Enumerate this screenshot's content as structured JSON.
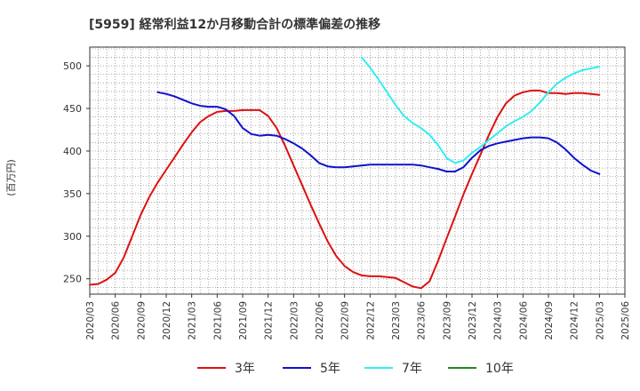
{
  "chart_data": {
    "type": "line",
    "title": "[5959]  経常利益12か月移動合計の標準偏差の推移",
    "ylabel": "(百万円)",
    "xlabel": "",
    "ylim": [
      232,
      522
    ],
    "yticks": [
      250,
      300,
      350,
      400,
      450,
      500
    ],
    "xlim": [
      "2020-03",
      "2025-06"
    ],
    "xticks": [
      "2020/03",
      "2020/06",
      "2020/09",
      "2020/12",
      "2021/03",
      "2021/06",
      "2021/09",
      "2021/12",
      "2022/03",
      "2022/06",
      "2022/09",
      "2022/12",
      "2023/03",
      "2023/06",
      "2023/09",
      "2023/12",
      "2024/03",
      "2024/06",
      "2024/09",
      "2024/12",
      "2025/03",
      "2025/06"
    ],
    "grid": true,
    "legend_position": "bottom",
    "series": [
      {
        "name": "3年",
        "color": "#dd1111",
        "x": [
          "2020-03",
          "2020-04",
          "2020-05",
          "2020-06",
          "2020-07",
          "2020-08",
          "2020-09",
          "2020-10",
          "2020-11",
          "2020-12",
          "2021-01",
          "2021-02",
          "2021-03",
          "2021-04",
          "2021-05",
          "2021-06",
          "2021-07",
          "2021-08",
          "2021-09",
          "2021-10",
          "2021-11",
          "2021-12",
          "2022-01",
          "2022-02",
          "2022-03",
          "2022-04",
          "2022-05",
          "2022-06",
          "2022-07",
          "2022-08",
          "2022-09",
          "2022-10",
          "2022-11",
          "2022-12",
          "2023-01",
          "2023-02",
          "2023-03",
          "2023-04",
          "2023-05",
          "2023-06",
          "2023-07",
          "2023-08",
          "2023-09",
          "2023-10",
          "2023-11",
          "2023-12",
          "2024-01",
          "2024-02",
          "2024-03",
          "2024-04",
          "2024-05",
          "2024-06",
          "2024-07",
          "2024-08",
          "2024-09",
          "2024-10",
          "2024-11",
          "2024-12",
          "2025-01",
          "2025-02",
          "2025-03"
        ],
        "values": [
          243,
          244,
          249,
          257,
          275,
          300,
          325,
          346,
          363,
          378,
          393,
          408,
          422,
          434,
          441,
          446,
          447,
          447,
          448,
          448,
          448,
          441,
          427,
          406,
          383,
          360,
          337,
          315,
          294,
          277,
          265,
          258,
          254,
          253,
          253,
          252,
          251,
          246,
          241,
          239,
          247,
          271,
          297,
          323,
          349,
          373,
          396,
          419,
          440,
          456,
          465,
          469,
          471,
          471,
          468,
          468,
          467,
          468,
          468,
          467,
          466
        ]
      },
      {
        "name": "5年",
        "color": "#1111cc",
        "x": [
          "2020-11",
          "2020-12",
          "2021-01",
          "2021-02",
          "2021-03",
          "2021-04",
          "2021-05",
          "2021-06",
          "2021-07",
          "2021-08",
          "2021-09",
          "2021-10",
          "2021-11",
          "2021-12",
          "2022-01",
          "2022-02",
          "2022-03",
          "2022-04",
          "2022-05",
          "2022-06",
          "2022-07",
          "2022-08",
          "2022-09",
          "2022-10",
          "2022-11",
          "2022-12",
          "2023-01",
          "2023-02",
          "2023-03",
          "2023-04",
          "2023-05",
          "2023-06",
          "2023-07",
          "2023-08",
          "2023-09",
          "2023-10",
          "2023-11",
          "2023-12",
          "2024-01",
          "2024-02",
          "2024-03",
          "2024-04",
          "2024-05",
          "2024-06",
          "2024-07",
          "2024-08",
          "2024-09",
          "2024-10",
          "2024-11",
          "2024-12",
          "2025-01",
          "2025-02",
          "2025-03"
        ],
        "values": [
          469,
          467,
          464,
          460,
          456,
          453,
          452,
          452,
          449,
          441,
          427,
          420,
          418,
          419,
          418,
          414,
          409,
          403,
          395,
          386,
          382,
          381,
          381,
          382,
          383,
          384,
          384,
          384,
          384,
          384,
          384,
          383,
          381,
          379,
          376,
          376,
          381,
          392,
          401,
          406,
          409,
          411,
          413,
          415,
          416,
          416,
          415,
          410,
          402,
          392,
          384,
          377,
          373
        ]
      },
      {
        "name": "7年",
        "color": "#33eeee",
        "x": [
          "2022-11",
          "2022-12",
          "2023-01",
          "2023-02",
          "2023-03",
          "2023-04",
          "2023-05",
          "2023-06",
          "2023-07",
          "2023-08",
          "2023-09",
          "2023-10",
          "2023-11",
          "2023-12",
          "2024-01",
          "2024-02",
          "2024-03",
          "2024-04",
          "2024-05",
          "2024-06",
          "2024-07",
          "2024-08",
          "2024-09",
          "2024-10",
          "2024-11",
          "2024-12",
          "2025-01",
          "2025-02",
          "2025-03"
        ],
        "values": [
          510,
          498,
          484,
          469,
          454,
          441,
          433,
          427,
          419,
          407,
          392,
          386,
          389,
          398,
          405,
          413,
          421,
          429,
          435,
          440,
          447,
          457,
          469,
          479,
          486,
          491,
          495,
          497,
          499
        ]
      },
      {
        "name": "10年",
        "color": "#228822",
        "x": [],
        "values": []
      }
    ]
  }
}
